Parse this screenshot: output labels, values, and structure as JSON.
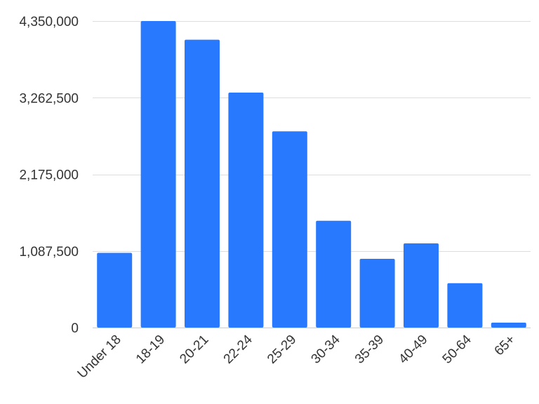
{
  "chart_data": {
    "type": "bar",
    "title": "",
    "xlabel": "",
    "ylabel": "",
    "categories": [
      "Under 18",
      "18-19",
      "20-21",
      "22-24",
      "25-29",
      "30-34",
      "35-39",
      "40-49",
      "50-64",
      "65+"
    ],
    "values": [
      1060000,
      4350000,
      4085000,
      3335000,
      2785000,
      1515000,
      975000,
      1195000,
      630000,
      70000
    ],
    "ylim": [
      0,
      4350000
    ],
    "yticks": [
      0,
      1087500,
      2175000,
      3262500,
      4350000
    ],
    "ytick_labels": [
      "0",
      "1,087,500",
      "2,175,000",
      "3,262,500",
      "4,350,000"
    ],
    "grid": true,
    "legend": "none",
    "bar_color": "#2979ff",
    "grid_color": "#dddddd",
    "text_color": "#333333"
  }
}
